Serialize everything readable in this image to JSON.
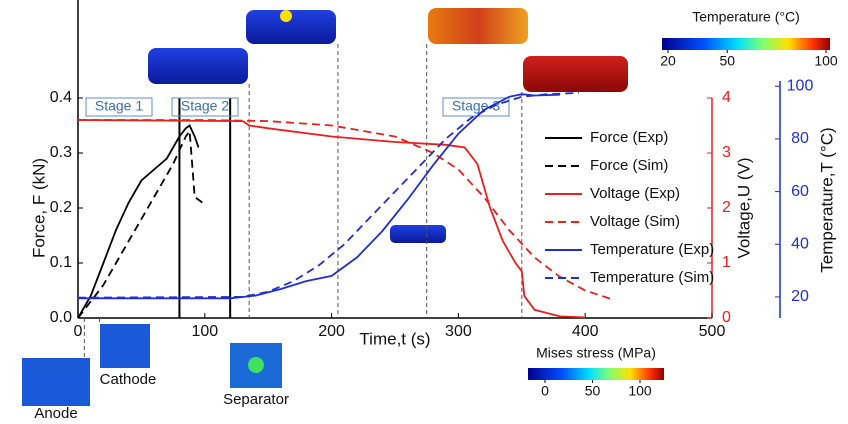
{
  "chart_data": {
    "type": "line",
    "xlabel": "Time,t (s)",
    "ylabel": "Force, F (kN)",
    "y2label": "Voltage,U (V)",
    "y3label": "Temperature,T (°C)",
    "xlim": [
      0,
      500
    ],
    "xticks": [
      0,
      100,
      200,
      300,
      400,
      500
    ],
    "ylim": [
      0,
      0.4
    ],
    "yticks": [
      {
        "value": 0,
        "label": "0.0"
      },
      0.1,
      0.2,
      0.3,
      0.4
    ],
    "y2lim": [
      0,
      4
    ],
    "y2ticks": [
      0,
      1,
      2,
      3,
      4
    ],
    "y3lim": [
      12,
      102
    ],
    "y3ticks": [
      20,
      40,
      60,
      80,
      100
    ],
    "stage_boundaries": [
      80,
      120
    ],
    "marker_times": [
      5,
      17,
      135,
      205,
      275,
      350
    ],
    "annotations": [
      "Stage 1",
      "Stage 2",
      "Stage  3"
    ],
    "image_labels": [
      "Anode",
      "Cathode",
      "Separator"
    ],
    "colorbars": [
      {
        "title": "Temperature (°C)",
        "ticks": [
          20,
          50,
          100
        ]
      },
      {
        "title": "Mises stress (MPa)",
        "ticks": [
          0,
          50,
          100
        ]
      }
    ],
    "series": [
      {
        "name": "Force (Exp)",
        "color": "#000000",
        "dashed": false,
        "axis": "y",
        "x": [
          0,
          10,
          20,
          30,
          40,
          50,
          60,
          70,
          80,
          85,
          88,
          92,
          95
        ],
        "values": [
          0,
          0.04,
          0.1,
          0.16,
          0.21,
          0.25,
          0.27,
          0.29,
          0.33,
          0.345,
          0.35,
          0.33,
          0.31
        ]
      },
      {
        "name": "Force (Sim)",
        "color": "#000000",
        "dashed": true,
        "axis": "y",
        "x": [
          0,
          20,
          40,
          60,
          75,
          85,
          88,
          92,
          98
        ],
        "values": [
          0,
          0.06,
          0.14,
          0.22,
          0.28,
          0.33,
          0.34,
          0.22,
          0.21
        ]
      },
      {
        "name": "Voltage (Exp)",
        "color": "#e8201e",
        "dashed": false,
        "axis": "y2",
        "x": [
          0,
          130,
          135,
          150,
          200,
          250,
          290,
          305,
          315,
          325,
          335,
          345,
          350,
          352,
          360,
          380,
          400
        ],
        "values": [
          3.6,
          3.58,
          3.5,
          3.45,
          3.3,
          3.2,
          3.15,
          3.1,
          2.8,
          2.0,
          1.4,
          1.0,
          0.85,
          0.4,
          0.15,
          0.03,
          0.01
        ]
      },
      {
        "name": "Voltage (Sim)",
        "color": "#e8201e",
        "dashed": true,
        "axis": "y2",
        "x": [
          0,
          100,
          150,
          200,
          250,
          280,
          300,
          320,
          340,
          360,
          380,
          400,
          420
        ],
        "values": [
          3.6,
          3.6,
          3.58,
          3.5,
          3.3,
          3.0,
          2.7,
          2.2,
          1.6,
          1.1,
          0.75,
          0.5,
          0.35
        ]
      },
      {
        "name": "Temperature (Exp)",
        "color": "#1f2fd0",
        "dashed": false,
        "axis": "y3",
        "x": [
          0,
          120,
          140,
          160,
          180,
          200,
          220,
          240,
          260,
          280,
          300,
          320,
          340,
          350,
          360,
          380
        ],
        "values": [
          19.5,
          19.5,
          20.5,
          23,
          26,
          28,
          35,
          45,
          57,
          70,
          82,
          91,
          96,
          97,
          96.5,
          96.8
        ]
      },
      {
        "name": "Temperature (Sim)",
        "color": "#1f2fd0",
        "dashed": true,
        "axis": "y3",
        "x": [
          0,
          130,
          150,
          170,
          190,
          210,
          230,
          250,
          270,
          290,
          310,
          330,
          350,
          370,
          395
        ],
        "values": [
          19.7,
          20,
          22,
          26,
          32,
          40,
          50,
          60,
          70,
          80,
          88,
          93,
          96,
          97,
          97.5
        ]
      }
    ]
  }
}
